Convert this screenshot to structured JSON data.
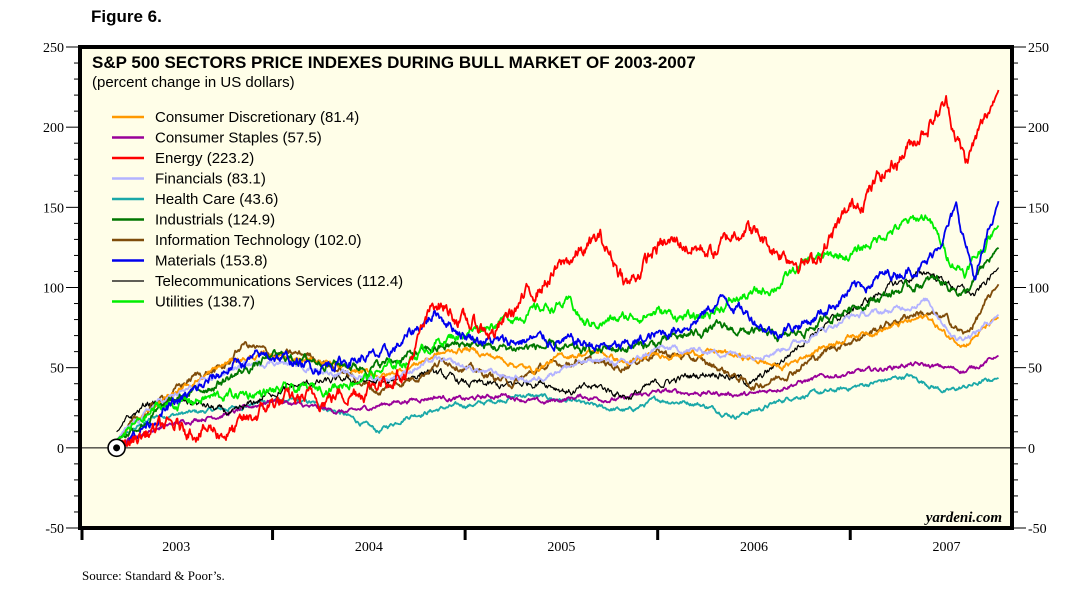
{
  "figure_label": "Figure 6.",
  "source": "Source: Standard & Poor’s.",
  "chart_data": {
    "type": "line",
    "title": "S&P 500 SECTORS PRICE INDEXES DURING BULL MARKET OF 2003-2007",
    "subtitle": "(percent change in US dollars)",
    "xlabel": "",
    "ylabel": "",
    "xlim": [
      2003.0,
      2007.84
    ],
    "ylim": [
      -50,
      250
    ],
    "yticks": [
      -50,
      0,
      50,
      100,
      150,
      200,
      250
    ],
    "yticks_minor_step": 10,
    "xtick_labels": [
      "2003",
      "2004",
      "2005",
      "2006",
      "2007"
    ],
    "x_year_starts": [
      2003,
      2004,
      2005,
      2006,
      2007
    ],
    "zero_line": true,
    "grid": false,
    "legend_position": "top-left",
    "start_marker": {
      "x": 2003.19,
      "y": 0,
      "label": "bull market start"
    },
    "watermark": "yardeni.com",
    "background": "#fffee8",
    "series": [
      {
        "name": "Consumer Discretionary",
        "final": "81.4",
        "color": "#ff9900",
        "points": [
          [
            2003.19,
            5
          ],
          [
            2003.4,
            28
          ],
          [
            2003.6,
            42
          ],
          [
            2003.8,
            55
          ],
          [
            2004.0,
            58
          ],
          [
            2004.2,
            55
          ],
          [
            2004.4,
            48
          ],
          [
            2004.6,
            45
          ],
          [
            2004.85,
            58
          ],
          [
            2005.0,
            62
          ],
          [
            2005.2,
            55
          ],
          [
            2005.35,
            48
          ],
          [
            2005.5,
            57
          ],
          [
            2005.7,
            60
          ],
          [
            2005.85,
            52
          ],
          [
            2006.0,
            58
          ],
          [
            2006.3,
            60
          ],
          [
            2006.5,
            55
          ],
          [
            2006.65,
            50
          ],
          [
            2006.8,
            60
          ],
          [
            2007.0,
            70
          ],
          [
            2007.2,
            75
          ],
          [
            2007.4,
            82
          ],
          [
            2007.5,
            70
          ],
          [
            2007.6,
            65
          ],
          [
            2007.77,
            81.4
          ]
        ]
      },
      {
        "name": "Consumer Staples",
        "final": "57.5",
        "color": "#990099",
        "points": [
          [
            2003.19,
            3
          ],
          [
            2003.4,
            12
          ],
          [
            2003.6,
            18
          ],
          [
            2003.8,
            22
          ],
          [
            2004.0,
            30
          ],
          [
            2004.2,
            25
          ],
          [
            2004.4,
            22
          ],
          [
            2004.6,
            28
          ],
          [
            2004.85,
            32
          ],
          [
            2005.0,
            30
          ],
          [
            2005.2,
            33
          ],
          [
            2005.4,
            28
          ],
          [
            2005.6,
            32
          ],
          [
            2005.8,
            30
          ],
          [
            2006.0,
            35
          ],
          [
            2006.3,
            34
          ],
          [
            2006.5,
            33
          ],
          [
            2006.7,
            40
          ],
          [
            2006.9,
            45
          ],
          [
            2007.1,
            48
          ],
          [
            2007.3,
            52
          ],
          [
            2007.5,
            50
          ],
          [
            2007.6,
            48
          ],
          [
            2007.77,
            57.5
          ]
        ]
      },
      {
        "name": "Energy",
        "final": "223.2",
        "color": "#ff0000",
        "points": [
          [
            2003.19,
            0
          ],
          [
            2003.4,
            12
          ],
          [
            2003.6,
            12
          ],
          [
            2003.8,
            10
          ],
          [
            2004.0,
            28
          ],
          [
            2004.3,
            32
          ],
          [
            2004.5,
            38
          ],
          [
            2004.7,
            50
          ],
          [
            2004.85,
            92
          ],
          [
            2005.0,
            78
          ],
          [
            2005.15,
            72
          ],
          [
            2005.3,
            92
          ],
          [
            2005.55,
            118
          ],
          [
            2005.7,
            130
          ],
          [
            2005.85,
            102
          ],
          [
            2006.0,
            125
          ],
          [
            2006.1,
            128
          ],
          [
            2006.3,
            122
          ],
          [
            2006.45,
            140
          ],
          [
            2006.6,
            124
          ],
          [
            2006.8,
            115
          ],
          [
            2007.0,
            148
          ],
          [
            2007.3,
            188
          ],
          [
            2007.5,
            215
          ],
          [
            2007.6,
            178
          ],
          [
            2007.77,
            223.2
          ]
        ]
      },
      {
        "name": "Financials",
        "final": "83.1",
        "color": "#b3b3ff",
        "points": [
          [
            2003.19,
            5
          ],
          [
            2003.4,
            28
          ],
          [
            2003.6,
            38
          ],
          [
            2003.8,
            50
          ],
          [
            2004.0,
            54
          ],
          [
            2004.2,
            50
          ],
          [
            2004.4,
            45
          ],
          [
            2004.6,
            43
          ],
          [
            2004.85,
            55
          ],
          [
            2005.0,
            50
          ],
          [
            2005.2,
            45
          ],
          [
            2005.35,
            42
          ],
          [
            2005.5,
            50
          ],
          [
            2005.7,
            55
          ],
          [
            2005.85,
            52
          ],
          [
            2006.0,
            62
          ],
          [
            2006.3,
            60
          ],
          [
            2006.45,
            58
          ],
          [
            2006.6,
            60
          ],
          [
            2006.8,
            70
          ],
          [
            2007.0,
            82
          ],
          [
            2007.2,
            85
          ],
          [
            2007.4,
            92
          ],
          [
            2007.55,
            68
          ],
          [
            2007.65,
            72
          ],
          [
            2007.77,
            83.1
          ]
        ]
      },
      {
        "name": "Health Care",
        "final": "43.6",
        "color": "#1aa8a8",
        "points": [
          [
            2003.19,
            5
          ],
          [
            2003.4,
            20
          ],
          [
            2003.6,
            22
          ],
          [
            2003.8,
            25
          ],
          [
            2004.0,
            30
          ],
          [
            2004.2,
            28
          ],
          [
            2004.35,
            22
          ],
          [
            2004.55,
            10
          ],
          [
            2004.7,
            20
          ],
          [
            2004.9,
            25
          ],
          [
            2005.1,
            28
          ],
          [
            2005.3,
            33
          ],
          [
            2005.5,
            30
          ],
          [
            2005.7,
            25
          ],
          [
            2005.85,
            23
          ],
          [
            2006.0,
            30
          ],
          [
            2006.2,
            28
          ],
          [
            2006.4,
            20
          ],
          [
            2006.55,
            25
          ],
          [
            2006.7,
            32
          ],
          [
            2006.9,
            35
          ],
          [
            2007.1,
            40
          ],
          [
            2007.3,
            45
          ],
          [
            2007.5,
            35
          ],
          [
            2007.6,
            38
          ],
          [
            2007.77,
            43.6
          ]
        ]
      },
      {
        "name": "Industrials",
        "final": "124.9",
        "color": "#007700",
        "points": [
          [
            2003.19,
            5
          ],
          [
            2003.5,
            30
          ],
          [
            2003.8,
            45
          ],
          [
            2004.0,
            57
          ],
          [
            2004.2,
            55
          ],
          [
            2004.5,
            50
          ],
          [
            2004.7,
            57
          ],
          [
            2004.85,
            62
          ],
          [
            2005.0,
            65
          ],
          [
            2005.2,
            62
          ],
          [
            2005.4,
            63
          ],
          [
            2005.6,
            60
          ],
          [
            2005.8,
            62
          ],
          [
            2006.0,
            65
          ],
          [
            2006.3,
            75
          ],
          [
            2006.5,
            72
          ],
          [
            2006.65,
            68
          ],
          [
            2006.8,
            75
          ],
          [
            2007.0,
            88
          ],
          [
            2007.3,
            100
          ],
          [
            2007.45,
            105
          ],
          [
            2007.6,
            96
          ],
          [
            2007.77,
            124.9
          ]
        ]
      },
      {
        "name": "Information Technology",
        "final": "102.0",
        "color": "#7f4c0a",
        "points": [
          [
            2003.19,
            5
          ],
          [
            2003.4,
            28
          ],
          [
            2003.6,
            45
          ],
          [
            2003.75,
            50
          ],
          [
            2003.85,
            65
          ],
          [
            2004.0,
            58
          ],
          [
            2004.2,
            58
          ],
          [
            2004.4,
            45
          ],
          [
            2004.55,
            35
          ],
          [
            2004.75,
            45
          ],
          [
            2004.9,
            55
          ],
          [
            2005.05,
            48
          ],
          [
            2005.25,
            40
          ],
          [
            2005.4,
            50
          ],
          [
            2005.6,
            55
          ],
          [
            2005.8,
            50
          ],
          [
            2006.0,
            60
          ],
          [
            2006.2,
            55
          ],
          [
            2006.35,
            48
          ],
          [
            2006.5,
            38
          ],
          [
            2006.7,
            48
          ],
          [
            2006.9,
            62
          ],
          [
            2007.1,
            72
          ],
          [
            2007.35,
            85
          ],
          [
            2007.5,
            80
          ],
          [
            2007.6,
            70
          ],
          [
            2007.77,
            102.0
          ]
        ]
      },
      {
        "name": "Materials",
        "final": "153.8",
        "color": "#0000ee",
        "points": [
          [
            2003.19,
            0
          ],
          [
            2003.4,
            20
          ],
          [
            2003.6,
            35
          ],
          [
            2003.8,
            52
          ],
          [
            2004.0,
            58
          ],
          [
            2004.2,
            50
          ],
          [
            2004.4,
            55
          ],
          [
            2004.6,
            58
          ],
          [
            2004.85,
            85
          ],
          [
            2005.0,
            70
          ],
          [
            2005.2,
            65
          ],
          [
            2005.35,
            68
          ],
          [
            2005.6,
            65
          ],
          [
            2005.8,
            62
          ],
          [
            2006.0,
            70
          ],
          [
            2006.2,
            80
          ],
          [
            2006.35,
            94
          ],
          [
            2006.45,
            85
          ],
          [
            2006.6,
            72
          ],
          [
            2006.8,
            80
          ],
          [
            2007.0,
            98
          ],
          [
            2007.2,
            108
          ],
          [
            2007.4,
            115
          ],
          [
            2007.55,
            148
          ],
          [
            2007.65,
            105
          ],
          [
            2007.77,
            153.8
          ]
        ]
      },
      {
        "name": "Telecommunications Services",
        "final": "112.4",
        "color": "#000000",
        "points": [
          [
            2003.19,
            10
          ],
          [
            2003.35,
            28
          ],
          [
            2003.6,
            28
          ],
          [
            2003.8,
            20
          ],
          [
            2004.0,
            35
          ],
          [
            2004.2,
            40
          ],
          [
            2004.4,
            42
          ],
          [
            2004.6,
            40
          ],
          [
            2004.8,
            48
          ],
          [
            2005.0,
            40
          ],
          [
            2005.2,
            38
          ],
          [
            2005.4,
            42
          ],
          [
            2005.55,
            35
          ],
          [
            2005.7,
            38
          ],
          [
            2005.85,
            32
          ],
          [
            2006.0,
            40
          ],
          [
            2006.3,
            48
          ],
          [
            2006.5,
            40
          ],
          [
            2006.65,
            55
          ],
          [
            2006.8,
            72
          ],
          [
            2007.0,
            85
          ],
          [
            2007.2,
            100
          ],
          [
            2007.4,
            110
          ],
          [
            2007.55,
            100
          ],
          [
            2007.65,
            95
          ],
          [
            2007.77,
            112.4
          ]
        ]
      },
      {
        "name": "Utilities",
        "final": "138.7",
        "color": "#00ee00",
        "points": [
          [
            2003.19,
            5
          ],
          [
            2003.4,
            25
          ],
          [
            2003.6,
            30
          ],
          [
            2003.8,
            33
          ],
          [
            2004.0,
            35
          ],
          [
            2004.3,
            38
          ],
          [
            2004.55,
            47
          ],
          [
            2004.7,
            55
          ],
          [
            2004.85,
            66
          ],
          [
            2005.0,
            72
          ],
          [
            2005.2,
            80
          ],
          [
            2005.4,
            87
          ],
          [
            2005.55,
            90
          ],
          [
            2005.62,
            77
          ],
          [
            2005.8,
            80
          ],
          [
            2006.0,
            85
          ],
          [
            2006.2,
            80
          ],
          [
            2006.4,
            92
          ],
          [
            2006.6,
            100
          ],
          [
            2006.8,
            118
          ],
          [
            2007.0,
            120
          ],
          [
            2007.2,
            135
          ],
          [
            2007.4,
            145
          ],
          [
            2007.5,
            120
          ],
          [
            2007.6,
            110
          ],
          [
            2007.77,
            138.7
          ]
        ]
      }
    ]
  }
}
